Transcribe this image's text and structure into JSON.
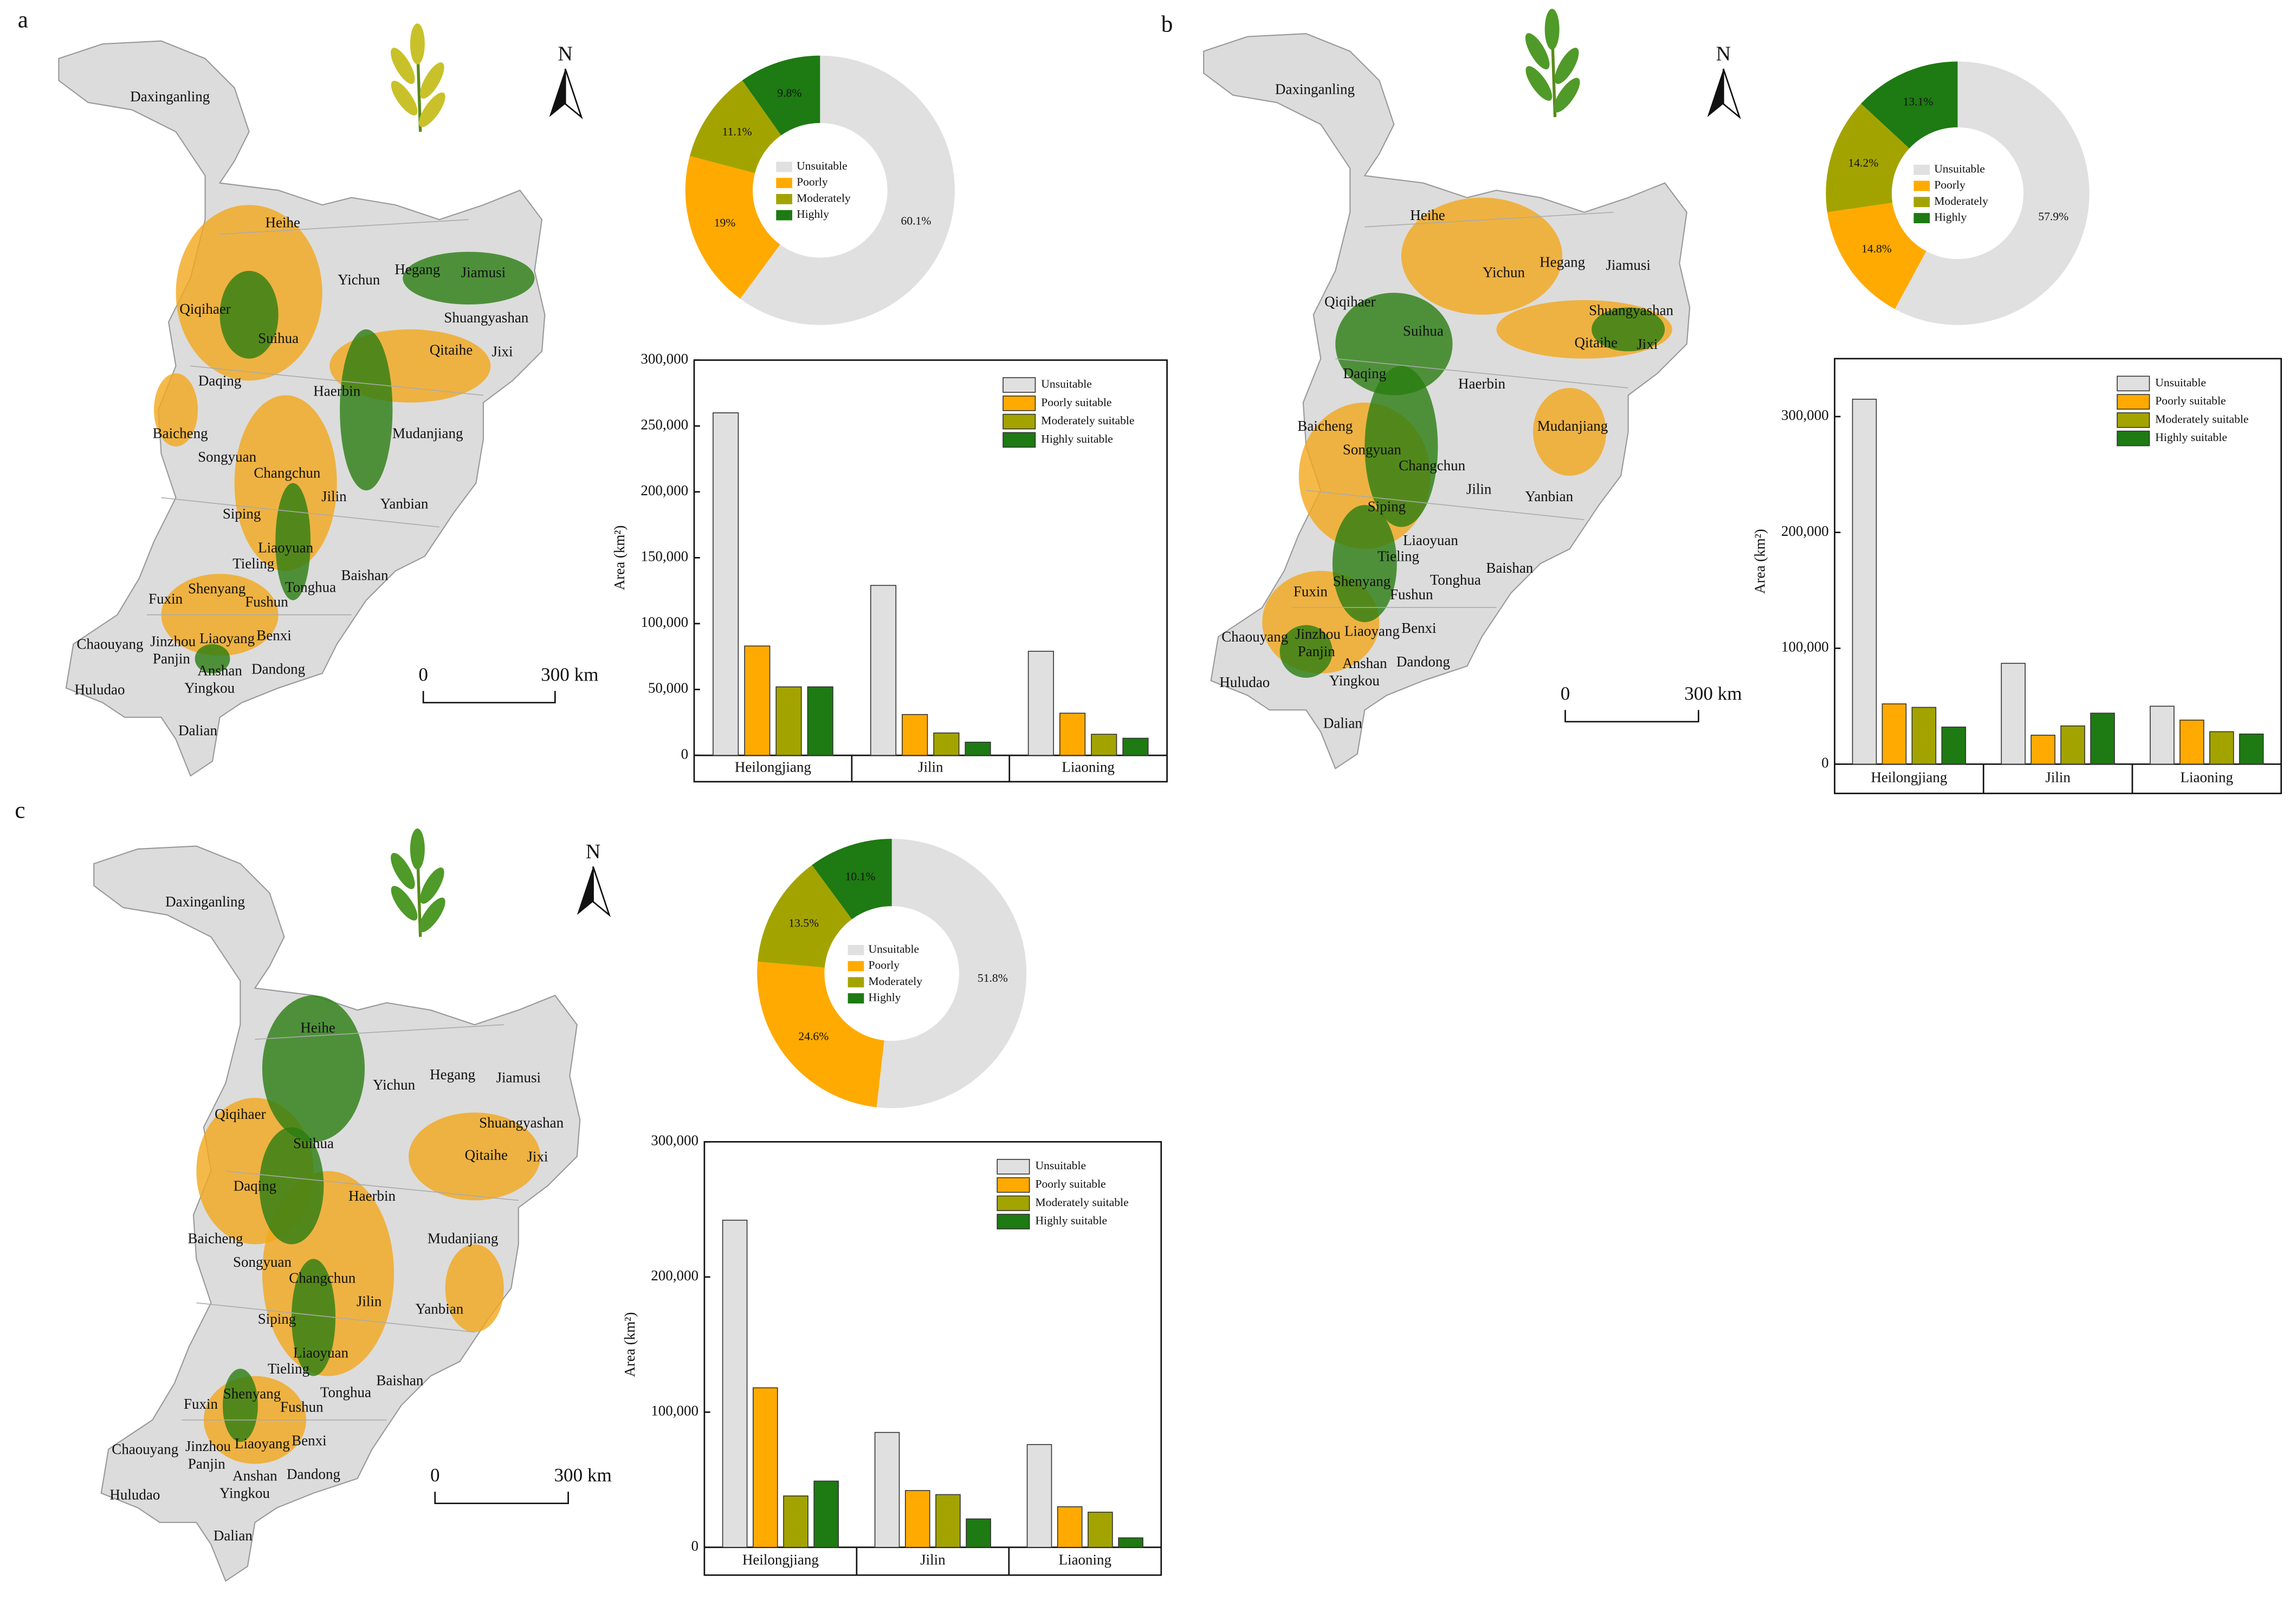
{
  "panels": [
    {
      "label": "a",
      "north": "N",
      "scale_labels": [
        "0",
        "300 km"
      ],
      "places": [
        "Daxinganling",
        "Heihe",
        "Yichun",
        "Hegang",
        "Jiamusi",
        "Qiqihaer",
        "Suihua",
        "Shuangyashan",
        "Qitaihe",
        "Jixi",
        "Daqing",
        "Haerbin",
        "Baicheng",
        "Mudanjiang",
        "Songyuan",
        "Changchun",
        "Jilin",
        "Siping",
        "Yanbian",
        "Liaoyuan",
        "Tieling",
        "Shenyang",
        "Tonghua",
        "Baishan",
        "Fuxin",
        "Fushun",
        "Benxi",
        "Chaouyang",
        "Jinzhou",
        "Liaoyang",
        "Panjin",
        "Anshan",
        "Dandong",
        "Huludao",
        "Yingkou",
        "Dalian"
      ]
    },
    {
      "label": "b",
      "north": "N",
      "scale_labels": [
        "0",
        "300 km"
      ],
      "places": [
        "Daxinganling",
        "Heihe",
        "Yichun",
        "Hegang",
        "Jiamusi",
        "Qiqihaer",
        "Suihua",
        "Shuangyashan",
        "Qitaihe",
        "Jixi",
        "Daqing",
        "Haerbin",
        "Baicheng",
        "Mudanjiang",
        "Songyuan",
        "Changchun",
        "Jilin",
        "Siping",
        "Yanbian",
        "Liaoyuan",
        "Tieling",
        "Shenyang",
        "Tonghua",
        "Baishan",
        "Fuxin",
        "Fushun",
        "Benxi",
        "Chaouyang",
        "Jinzhou",
        "Liaoyang",
        "Panjin",
        "Anshan",
        "Dandong",
        "Huludao",
        "Yingkou",
        "Dalian"
      ]
    },
    {
      "label": "c",
      "north": "N",
      "scale_labels": [
        "0",
        "300 km"
      ],
      "places": [
        "Daxinganling",
        "Heihe",
        "Yichun",
        "Hegang",
        "Jiamusi",
        "Qiqihaer",
        "Suihua",
        "Shuangyashan",
        "Qitaihe",
        "Jixi",
        "Daqing",
        "Haerbin",
        "Baicheng",
        "Mudanjiang",
        "Songyuan",
        "Changchun",
        "Jilin",
        "Siping",
        "Yanbian",
        "Liaoyuan",
        "Tieling",
        "Shenyang",
        "Tonghua",
        "Baishan",
        "Fuxin",
        "Fushun",
        "Benxi",
        "Chaouyang",
        "Jinzhou",
        "Liaoyang",
        "Panjin",
        "Anshan",
        "Dandong",
        "Huludao",
        "Yingkou",
        "Dalian"
      ]
    }
  ],
  "chart_data": [
    {
      "type": "pie",
      "categories": [
        "Unsuitable",
        "Poorly",
        "Moderately",
        "Highly"
      ],
      "values": [
        60.1,
        19,
        11.1,
        9.8
      ],
      "value_labels": [
        "60.1%",
        "19%",
        "11.1%",
        "9.8%"
      ],
      "colors": [
        "#e0e0e0",
        "#ffaa00",
        "#a3a300",
        "#1e7a12"
      ]
    },
    {
      "type": "bar",
      "categories": [
        "Heilongjiang",
        "Jilin",
        "Liaoning"
      ],
      "ylabel": "Area (km²)",
      "ylim": [
        0,
        300000
      ],
      "yticks": [
        0,
        {
          "value": 50000,
          "label": "50,000"
        },
        {
          "value": 100000,
          "label": "100,000"
        },
        {
          "value": 150000,
          "label": "150,000"
        },
        {
          "value": 200000,
          "label": "200,000"
        },
        {
          "value": 250000,
          "label": "250,000"
        },
        {
          "value": 300000,
          "label": "300,000"
        }
      ],
      "series": [
        {
          "name": "Unsuitable",
          "color": "#e0e0e0",
          "values": [
            260000,
            129000,
            79000
          ]
        },
        {
          "name": "Poorly suitable",
          "color": "#ffaa00",
          "values": [
            83000,
            31000,
            32000
          ]
        },
        {
          "name": "Moderately suitable",
          "color": "#a3a300",
          "values": [
            52000,
            17000,
            16000
          ]
        },
        {
          "name": "Highly suitable",
          "color": "#1e7a12",
          "values": [
            52000,
            10000,
            13000
          ]
        }
      ]
    },
    {
      "type": "pie",
      "categories": [
        "Unsuitable",
        "Poorly",
        "Moderately",
        "Highly"
      ],
      "values": [
        57.9,
        14.8,
        14.2,
        13.1
      ],
      "value_labels": [
        "57.9%",
        "14.8%",
        "14.2%",
        "13.1%"
      ],
      "colors": [
        "#e0e0e0",
        "#ffaa00",
        "#a3a300",
        "#1e7a12"
      ]
    },
    {
      "type": "bar",
      "categories": [
        "Heilongjiang",
        "Jilin",
        "Liaoning"
      ],
      "ylabel": "Area (km²)",
      "ylim": [
        0,
        350000
      ],
      "yticks": [
        0,
        {
          "value": 100000,
          "label": "100,000"
        },
        {
          "value": 200000,
          "label": "200,000"
        },
        {
          "value": 300000,
          "label": "300,000"
        }
      ],
      "series": [
        {
          "name": "Unsuitable",
          "color": "#e0e0e0",
          "values": [
            315000,
            87000,
            50000
          ]
        },
        {
          "name": "Poorly suitable",
          "color": "#ffaa00",
          "values": [
            52000,
            25000,
            38000
          ]
        },
        {
          "name": "Moderately suitable",
          "color": "#a3a300",
          "values": [
            49000,
            33000,
            28000
          ]
        },
        {
          "name": "Highly suitable",
          "color": "#1e7a12",
          "values": [
            32000,
            44000,
            26000
          ]
        }
      ]
    },
    {
      "type": "pie",
      "categories": [
        "Unsuitable",
        "Poorly",
        "Moderately",
        "Highly"
      ],
      "values": [
        51.8,
        24.6,
        13.5,
        10.1
      ],
      "value_labels": [
        "51.8%",
        "24.6%",
        "13.5%",
        "10.1%"
      ],
      "colors": [
        "#e0e0e0",
        "#ffaa00",
        "#a3a300",
        "#1e7a12"
      ]
    },
    {
      "type": "bar",
      "categories": [
        "Heilongjiang",
        "Jilin",
        "Liaoning"
      ],
      "ylabel": "Area (km²)",
      "ylim": [
        0,
        300000
      ],
      "yticks": [
        0,
        {
          "value": 100000,
          "label": "100,000"
        },
        {
          "value": 200000,
          "label": "200,000"
        },
        {
          "value": 300000,
          "label": "300,000"
        }
      ],
      "series": [
        {
          "name": "Unsuitable",
          "color": "#e0e0e0",
          "values": [
            242000,
            85000,
            76000
          ]
        },
        {
          "name": "Poorly suitable",
          "color": "#ffaa00",
          "values": [
            118000,
            42000,
            30000
          ]
        },
        {
          "name": "Moderately suitable",
          "color": "#a3a300",
          "values": [
            38000,
            39000,
            26000
          ]
        },
        {
          "name": "Highly suitable",
          "color": "#1e7a12",
          "values": [
            49000,
            21000,
            7000
          ]
        }
      ]
    }
  ]
}
